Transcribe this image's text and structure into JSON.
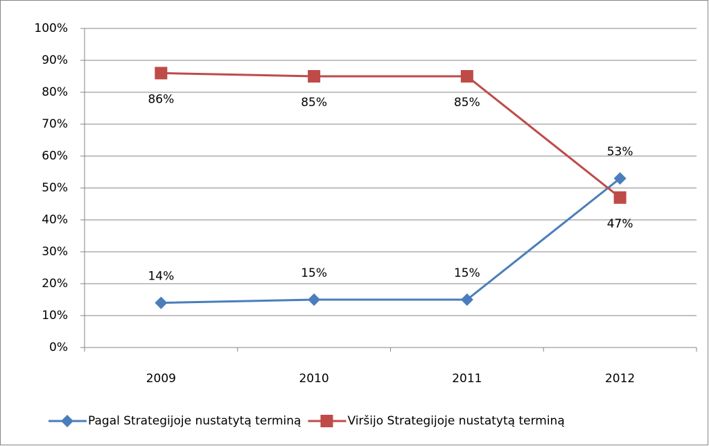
{
  "chart_data": {
    "type": "line",
    "categories": [
      "2009",
      "2010",
      "2011",
      "2012"
    ],
    "series": [
      {
        "name": "Pagal Strategijoje nustatytą terminą",
        "color": "#4a7ebb",
        "marker": "diamond",
        "values": [
          14,
          15,
          15,
          53
        ],
        "value_labels": [
          "14%",
          "15%",
          "15%",
          "53%"
        ]
      },
      {
        "name": "Viršijo Strategijoje nustatytą terminą",
        "color": "#be4b48",
        "marker": "square",
        "values": [
          86,
          85,
          85,
          47
        ],
        "value_labels": [
          "86%",
          "85%",
          "85%",
          "47%"
        ]
      }
    ],
    "ylim": [
      0,
      100
    ],
    "yticks": [
      {
        "value": 0,
        "label": "0%"
      },
      {
        "value": 10,
        "label": "10%"
      },
      {
        "value": 20,
        "label": "20%"
      },
      {
        "value": 30,
        "label": "30%"
      },
      {
        "value": 40,
        "label": "40%"
      },
      {
        "value": 50,
        "label": "50%"
      },
      {
        "value": 60,
        "label": "60%"
      },
      {
        "value": 70,
        "label": "70%"
      },
      {
        "value": 80,
        "label": "80%"
      },
      {
        "value": 90,
        "label": "90%"
      },
      {
        "value": 100,
        "label": "100%"
      }
    ],
    "grid": true,
    "legend": "bottom"
  }
}
